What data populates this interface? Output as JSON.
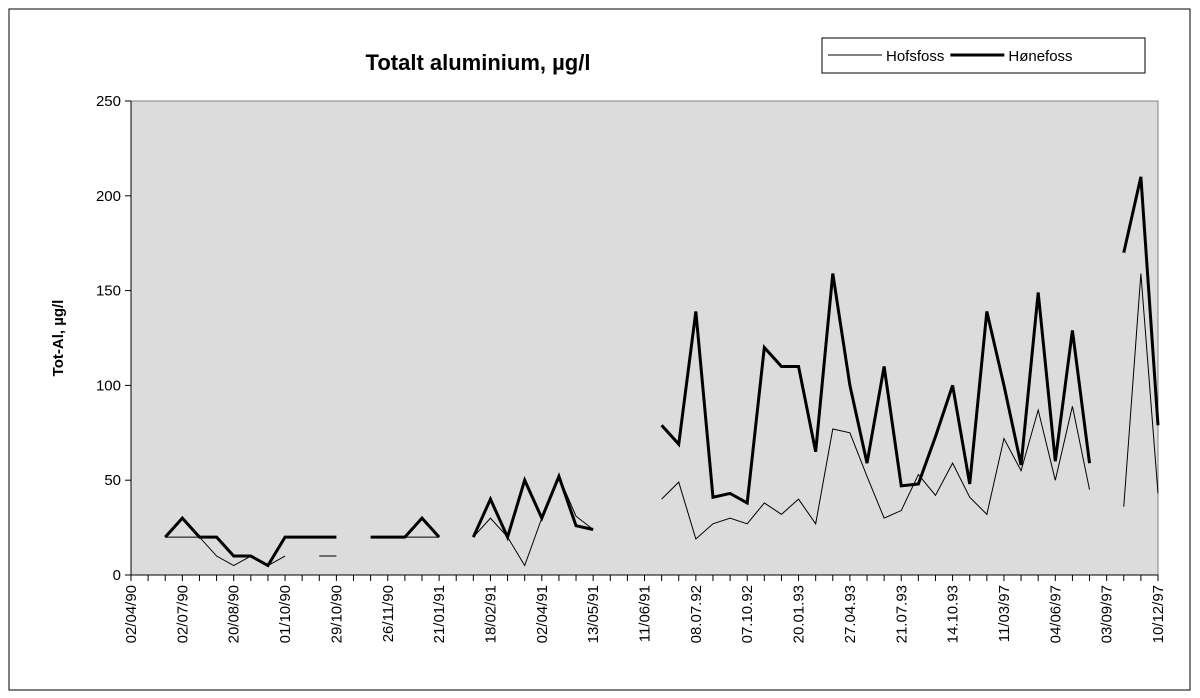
{
  "chart_data": {
    "type": "line",
    "title": "Totalt aluminium, µg/l",
    "y_label": "Tot-Al, µg/l",
    "categories": [
      "02/04/90",
      null,
      null,
      "02/07/90",
      null,
      null,
      "20/08/90",
      null,
      null,
      "01/10/90",
      null,
      null,
      "29/10/90",
      null,
      null,
      "26/11/90",
      null,
      null,
      "21/01/91",
      null,
      null,
      "18/02/91",
      null,
      null,
      "02/04/91",
      null,
      null,
      "13/05/91",
      null,
      null,
      "11/06/91",
      null,
      null,
      "08.07.92",
      null,
      null,
      "07.10.92",
      null,
      null,
      "20.01.93",
      null,
      null,
      "27.04.93",
      null,
      null,
      "21.07.93",
      null,
      null,
      "14.10.93",
      null,
      null,
      "11/03/97",
      null,
      null,
      "04/06/97",
      null,
      null,
      "03/09/97",
      null,
      null,
      "10/12/97"
    ],
    "series": [
      {
        "name": "Hofsfoss",
        "color": "#000000",
        "width": 1,
        "values": [
          null,
          null,
          20,
          20,
          20,
          10,
          5,
          10,
          5,
          10,
          null,
          10,
          10,
          null,
          20,
          20,
          20,
          20,
          20,
          null,
          20,
          30,
          20,
          5,
          30,
          52,
          31,
          24,
          null,
          null,
          null,
          40,
          49,
          19,
          27,
          30,
          27,
          38,
          32,
          40,
          27,
          77,
          75,
          52,
          30,
          34,
          53,
          42,
          59,
          41,
          32,
          72,
          55,
          87,
          50,
          89,
          45,
          null,
          36,
          159,
          43
        ]
      },
      {
        "name": "Hønefoss",
        "color": "#000000",
        "width": 3,
        "values": [
          null,
          null,
          20,
          30,
          20,
          20,
          10,
          10,
          5,
          20,
          20,
          20,
          20,
          null,
          20,
          20,
          20,
          30,
          20,
          null,
          20,
          40,
          20,
          50,
          30,
          52,
          26,
          24,
          null,
          null,
          null,
          79,
          69,
          139,
          41,
          43,
          38,
          120,
          110,
          110,
          65,
          159,
          100,
          59,
          110,
          47,
          48,
          73,
          100,
          48,
          139,
          100,
          58,
          149,
          60,
          129,
          59,
          null,
          170,
          210,
          79
        ]
      }
    ],
    "ylim": [
      0,
      250
    ],
    "yticks": [
      0,
      50,
      100,
      150,
      200,
      250
    ],
    "plot_background": "#dcdcdc",
    "legend": "top-right"
  }
}
